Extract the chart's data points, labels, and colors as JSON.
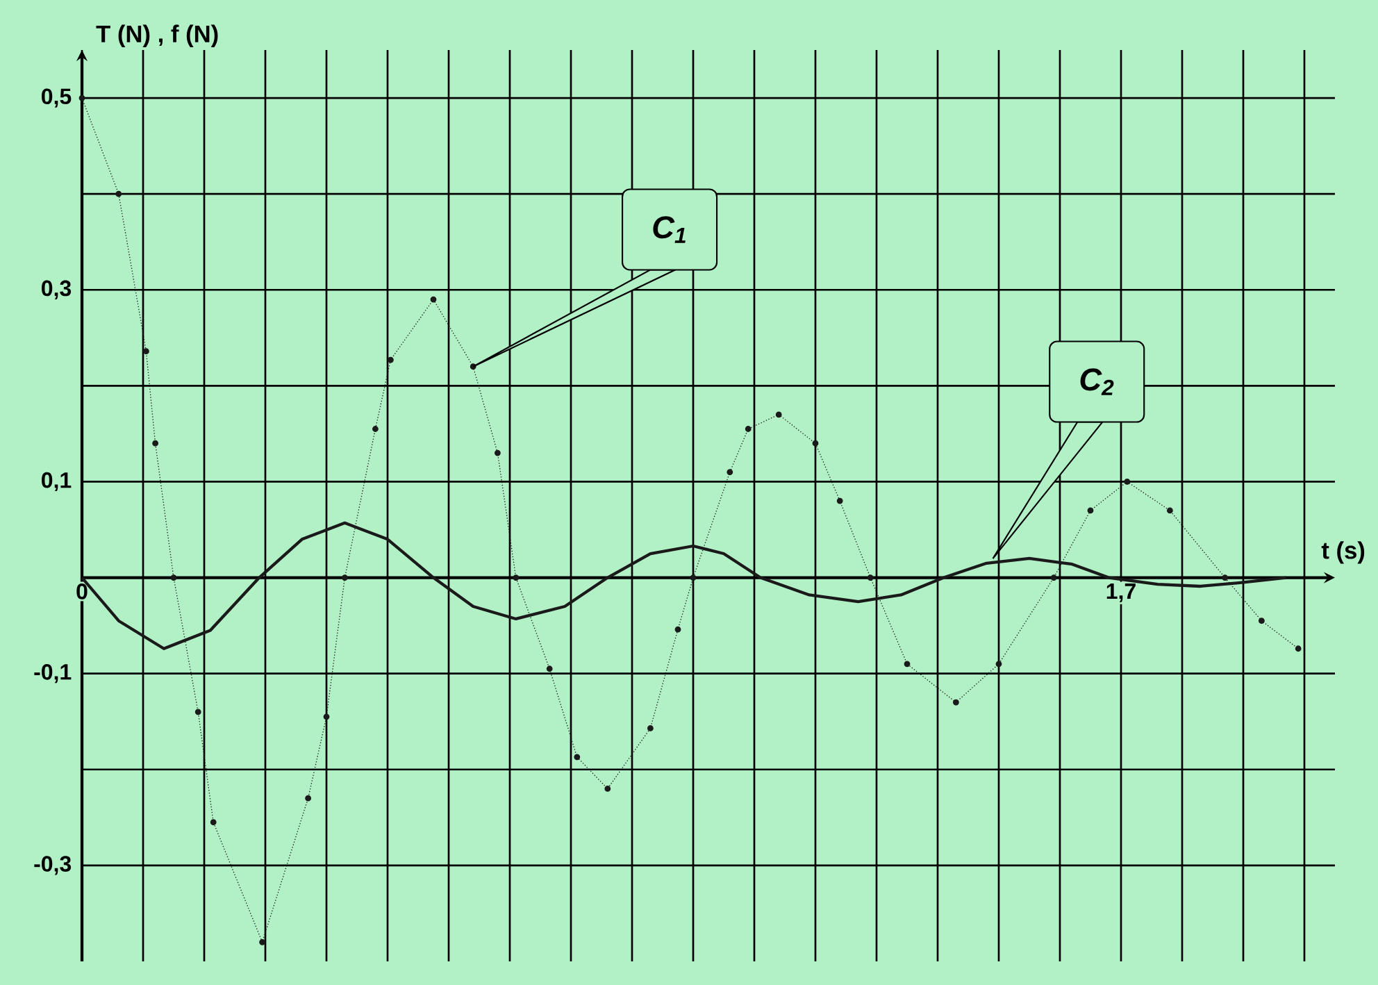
{
  "chart_data": {
    "type": "line",
    "xlabel": "t (s)",
    "ylabel": "T (N) , f (N)",
    "xlim": [
      0,
      2.05
    ],
    "ylim": [
      -0.4,
      0.55
    ],
    "xticks": [
      {
        "value": 0,
        "label": "0"
      },
      {
        "value": 0.1,
        "label": null
      },
      {
        "value": 0.2,
        "label": null
      },
      {
        "value": 0.3,
        "label": null
      },
      {
        "value": 0.4,
        "label": null
      },
      {
        "value": 0.5,
        "label": null
      },
      {
        "value": 0.6,
        "label": null
      },
      {
        "value": 0.7,
        "label": null
      },
      {
        "value": 0.8,
        "label": null
      },
      {
        "value": 0.9,
        "label": null
      },
      {
        "value": 1.0,
        "label": null
      },
      {
        "value": 1.1,
        "label": null
      },
      {
        "value": 1.2,
        "label": null
      },
      {
        "value": 1.3,
        "label": null
      },
      {
        "value": 1.4,
        "label": null
      },
      {
        "value": 1.5,
        "label": null
      },
      {
        "value": 1.6,
        "label": null
      },
      {
        "value": 1.7,
        "label": "1,7"
      },
      {
        "value": 1.8,
        "label": null
      },
      {
        "value": 1.9,
        "label": null
      },
      {
        "value": 2.0,
        "label": null
      }
    ],
    "yticks": [
      {
        "value": -0.3,
        "label": "-0,3"
      },
      {
        "value": -0.2,
        "label": null
      },
      {
        "value": -0.1,
        "label": "-0,1"
      },
      {
        "value": 0.1,
        "label": "0,1"
      },
      {
        "value": 0.2,
        "label": null
      },
      {
        "value": 0.3,
        "label": "0,3"
      },
      {
        "value": 0.4,
        "label": null
      },
      {
        "value": 0.5,
        "label": "0,5"
      }
    ],
    "grid": true,
    "series": [
      {
        "color": "#1a1a1a",
        "marker": "circle",
        "line_style": "dotted",
        "x": [
          0,
          0.06,
          0.105,
          0.12,
          0.15,
          0.19,
          0.215,
          0.295,
          0.37,
          0.4,
          0.43,
          0.48,
          0.505,
          0.575,
          0.64,
          0.68,
          0.71,
          0.765,
          0.81,
          0.86,
          0.93,
          0.975,
          1.0,
          1.06,
          1.09,
          1.14,
          1.2,
          1.24,
          1.29,
          1.35,
          1.43,
          1.5,
          1.59,
          1.65,
          1.71,
          1.78,
          1.87,
          1.93,
          1.99
        ],
        "values": [
          0.5,
          0.4,
          0.236,
          0.14,
          0,
          -0.14,
          -0.255,
          -0.38,
          -0.23,
          -0.145,
          0,
          0.155,
          0.227,
          0.29,
          0.22,
          0.13,
          0,
          -0.095,
          -0.187,
          -0.22,
          -0.157,
          -0.054,
          0,
          0.11,
          0.155,
          0.17,
          0.14,
          0.08,
          0,
          -0.09,
          -0.13,
          -0.09,
          0,
          0.07,
          0.1,
          0.07,
          0,
          -0.045,
          -0.074
        ]
      },
      {
        "color": "#1a1a1a",
        "marker": "none",
        "line_style": "solid",
        "x": [
          0,
          0.06,
          0.134,
          0.21,
          0.29,
          0.36,
          0.43,
          0.5,
          0.575,
          0.64,
          0.71,
          0.79,
          0.86,
          0.93,
          1.0,
          1.05,
          1.11,
          1.19,
          1.27,
          1.34,
          1.41,
          1.48,
          1.55,
          1.62,
          1.68,
          1.76,
          1.83,
          1.9,
          1.97
        ],
        "values": [
          0,
          -0.045,
          -0.074,
          -0.055,
          0,
          0.04,
          0.057,
          0.04,
          0,
          -0.03,
          -0.043,
          -0.03,
          0,
          0.025,
          0.033,
          0.025,
          0,
          -0.018,
          -0.025,
          -0.018,
          0,
          0.015,
          0.02,
          0.014,
          0,
          -0.007,
          -0.009,
          -0.005,
          0
        ]
      }
    ],
    "annotations": [
      {
        "text": "C$_{1}$",
        "x": 0.64,
        "y": 0.22
      },
      "C$_{2}$"
    ]
  }
}
